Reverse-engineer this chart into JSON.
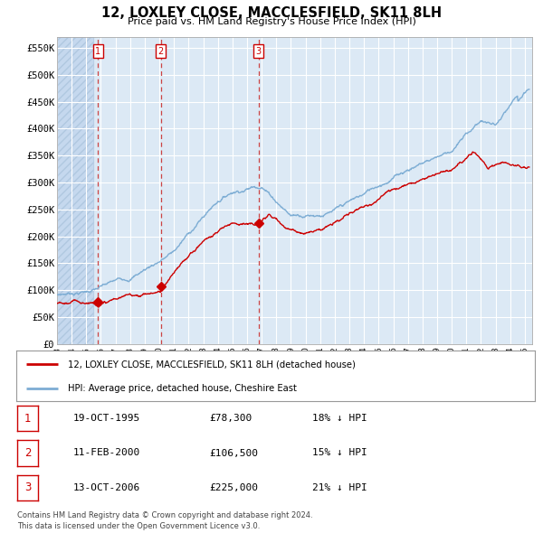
{
  "title": "12, LOXLEY CLOSE, MACCLESFIELD, SK11 8LH",
  "subtitle": "Price paid vs. HM Land Registry's House Price Index (HPI)",
  "background_color": "#ffffff",
  "plot_bg_color": "#dce9f5",
  "grid_color": "#ffffff",
  "hatch_color": "#c5d8ee",
  "red_line_color": "#cc0000",
  "blue_line_color": "#7dadd4",
  "purchases": [
    {
      "date_x": 1995.8,
      "price": 78300,
      "label": "1"
    },
    {
      "date_x": 2000.11,
      "price": 106500,
      "label": "2"
    },
    {
      "date_x": 2006.79,
      "price": 225000,
      "label": "3"
    }
  ],
  "xmin": 1993.0,
  "xmax": 2025.5,
  "ymin": 0,
  "ymax": 570000,
  "yticks": [
    0,
    50000,
    100000,
    150000,
    200000,
    250000,
    300000,
    350000,
    400000,
    450000,
    500000,
    550000
  ],
  "ytick_labels": [
    "£0",
    "£50K",
    "£100K",
    "£150K",
    "£200K",
    "£250K",
    "£300K",
    "£350K",
    "£400K",
    "£450K",
    "£500K",
    "£550K"
  ],
  "xticks": [
    1993,
    1994,
    1995,
    1996,
    1997,
    1998,
    1999,
    2000,
    2001,
    2002,
    2003,
    2004,
    2005,
    2006,
    2007,
    2008,
    2009,
    2010,
    2011,
    2012,
    2013,
    2014,
    2015,
    2016,
    2017,
    2018,
    2019,
    2020,
    2021,
    2022,
    2023,
    2024,
    2025
  ],
  "legend_red_label": "12, LOXLEY CLOSE, MACCLESFIELD, SK11 8LH (detached house)",
  "legend_blue_label": "HPI: Average price, detached house, Cheshire East",
  "table_rows": [
    {
      "num": "1",
      "date": "19-OCT-1995",
      "price": "£78,300",
      "hpi": "18% ↓ HPI"
    },
    {
      "num": "2",
      "date": "11-FEB-2000",
      "price": "£106,500",
      "hpi": "15% ↓ HPI"
    },
    {
      "num": "3",
      "date": "13-OCT-2006",
      "price": "£225,000",
      "hpi": "21% ↓ HPI"
    }
  ],
  "footer": "Contains HM Land Registry data © Crown copyright and database right 2024.\nThis data is licensed under the Open Government Licence v3.0."
}
